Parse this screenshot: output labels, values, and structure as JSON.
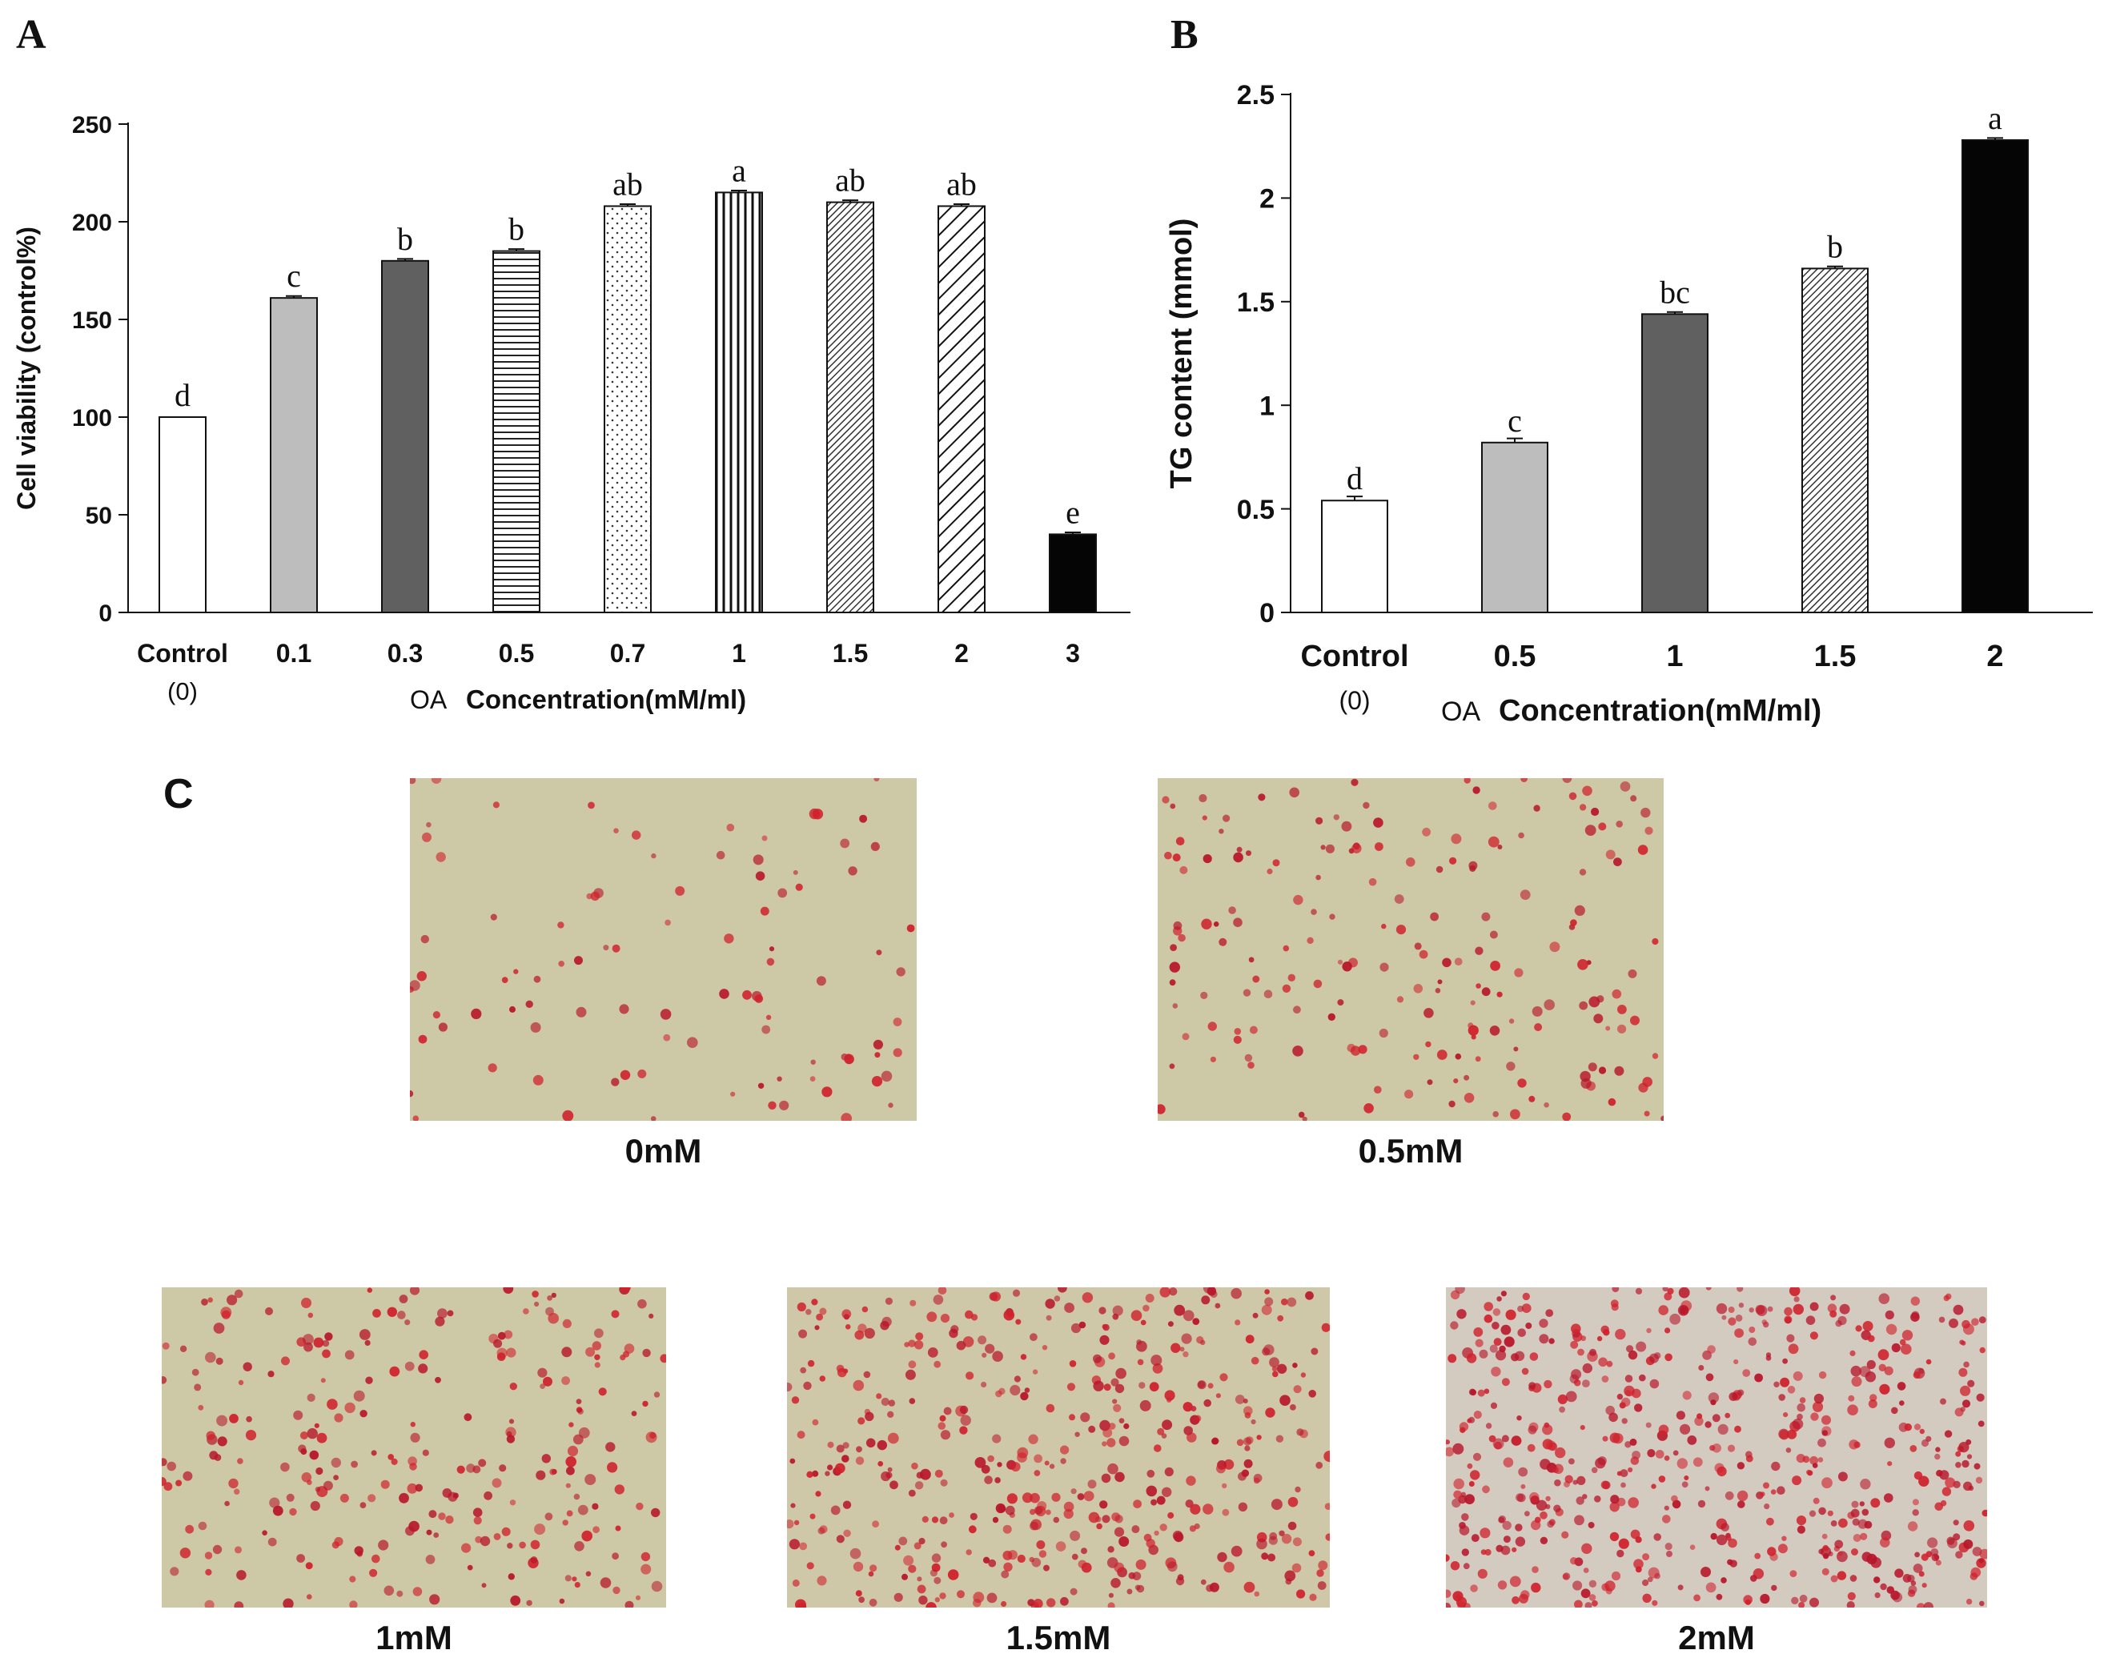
{
  "figure": {
    "panel_letters": [
      "A",
      "B",
      "C"
    ]
  },
  "chart_data": [
    {
      "type": "bar",
      "panel": "A",
      "categories": [
        "Control",
        "0.1",
        "0.3",
        "0.5",
        "0.7",
        "1",
        "1.5",
        "2",
        "3"
      ],
      "category_sublabels": [
        "(0)",
        "",
        "",
        "",
        "",
        "",
        "",
        "",
        ""
      ],
      "values": [
        100,
        161,
        180,
        185,
        208,
        215,
        210,
        208,
        40
      ],
      "errors": [
        0,
        1,
        1,
        1,
        1,
        1,
        1,
        1,
        1
      ],
      "significance_letters": [
        "d",
        "c",
        "b",
        "b",
        "ab",
        "a",
        "ab",
        "ab",
        "e"
      ],
      "patterns": [
        "white",
        "lightgray",
        "darkgray",
        "hlines",
        "dots",
        "vlines",
        "dense-diag",
        "diag",
        "black"
      ],
      "xlabel_prefix": "OA",
      "xlabel": "Concentration(mM/ml)",
      "ylabel": "Cell viability (control%)",
      "ylim": [
        0,
        250
      ],
      "yticks": [
        0,
        50,
        100,
        150,
        200,
        250
      ],
      "ytick_labels": [
        "0",
        "50",
        "100",
        "150",
        "200",
        "250"
      ]
    },
    {
      "type": "bar",
      "panel": "B",
      "categories": [
        "Control",
        "0.5",
        "1",
        "1.5",
        "2"
      ],
      "category_sublabels": [
        "(0)",
        "",
        "",
        "",
        ""
      ],
      "values": [
        0.54,
        0.82,
        1.44,
        1.66,
        2.28
      ],
      "errors": [
        0.02,
        0.02,
        0.01,
        0.01,
        0.01
      ],
      "significance_letters": [
        "d",
        "c",
        "bc",
        "b",
        "a"
      ],
      "patterns": [
        "white",
        "lightgray",
        "darkgray",
        "dense-diag",
        "black"
      ],
      "xlabel_prefix": "OA",
      "xlabel": "Concentration(mM/ml)",
      "ylabel": "TG content (mmol)",
      "ylim": [
        0,
        2.5
      ],
      "yticks": [
        0,
        0.5,
        1,
        1.5,
        2,
        2.5
      ],
      "ytick_labels": [
        "0",
        "0.5",
        "1",
        "1.5",
        "2",
        "2.5"
      ]
    }
  ],
  "micrographs": [
    {
      "label": "0mM",
      "density": 0.15
    },
    {
      "label": "0.5mM",
      "density": 0.3
    },
    {
      "label": "1mM",
      "density": 0.45
    },
    {
      "label": "1.5mM",
      "density": 0.72
    },
    {
      "label": "2mM",
      "density": 0.95
    }
  ]
}
